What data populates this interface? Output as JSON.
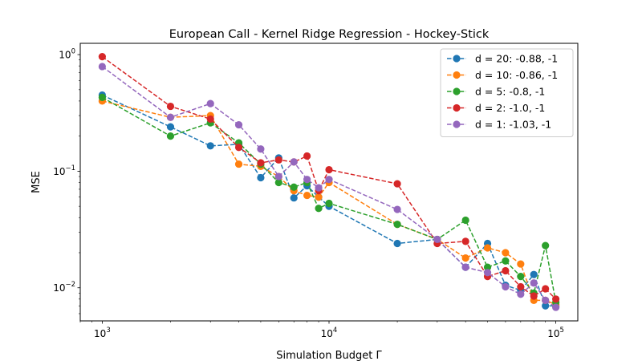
{
  "chart_data": {
    "type": "line",
    "title": "European Call - Kernel Ridge Regression - Hockey-Stick",
    "xlabel": "Simulation Budget Γ",
    "ylabel": "MSE",
    "xscale": "log",
    "yscale": "log",
    "xlim": [
      800,
      125000
    ],
    "ylim": [
      0.0052,
      1.25
    ],
    "x_ticks": [
      {
        "value": 1000,
        "base": "10",
        "exp": "3"
      },
      {
        "value": 10000,
        "base": "10",
        "exp": "4"
      },
      {
        "value": 100000,
        "base": "10",
        "exp": "5"
      }
    ],
    "y_ticks": [
      {
        "value": 0.01,
        "base": "10",
        "exp": "−2"
      },
      {
        "value": 0.1,
        "base": "10",
        "exp": "−1"
      },
      {
        "value": 1,
        "base": "10",
        "exp": "0"
      }
    ],
    "grid": false,
    "legend_position": "top-right",
    "x": [
      1000,
      2000,
      3000,
      4000,
      5000,
      6000,
      7000,
      8000,
      9000,
      10000,
      20000,
      30000,
      40000,
      50000,
      60000,
      70000,
      80000,
      90000,
      100000
    ],
    "series": [
      {
        "name": "d = 20: -0.88, -1",
        "color": "#1f77b4",
        "values": [
          0.45,
          0.24,
          0.165,
          0.17,
          0.088,
          0.13,
          0.059,
          0.075,
          0.06,
          0.05,
          0.024,
          0.026,
          0.015,
          0.024,
          0.0105,
          0.0095,
          0.013,
          0.007,
          0.007
        ]
      },
      {
        "name": "d = 10: -0.86, -1",
        "color": "#ff7f0e",
        "values": [
          0.4,
          0.29,
          0.3,
          0.115,
          0.11,
          0.09,
          0.068,
          0.062,
          0.06,
          0.08,
          0.035,
          0.026,
          0.018,
          0.022,
          0.02,
          0.016,
          0.0078,
          0.0078,
          0.0072
        ]
      },
      {
        "name": "d = 5: -0.8, -1",
        "color": "#2ca02c",
        "values": [
          0.43,
          0.2,
          0.26,
          0.175,
          0.115,
          0.08,
          0.073,
          0.08,
          0.048,
          0.053,
          0.035,
          0.026,
          0.038,
          0.015,
          0.017,
          0.0125,
          0.009,
          0.023,
          0.0075
        ]
      },
      {
        "name": "d = 2: -1.0, -1",
        "color": "#d62728",
        "values": [
          0.96,
          0.36,
          0.28,
          0.16,
          0.118,
          0.125,
          0.12,
          0.135,
          0.068,
          0.103,
          0.078,
          0.024,
          0.025,
          0.0125,
          0.014,
          0.0102,
          0.0085,
          0.0098,
          0.008
        ]
      },
      {
        "name": "d = 1: -1.03, -1",
        "color": "#9467bd",
        "values": [
          0.79,
          0.29,
          0.38,
          0.25,
          0.155,
          0.09,
          0.12,
          0.085,
          0.072,
          0.085,
          0.047,
          0.026,
          0.015,
          0.0135,
          0.0102,
          0.0088,
          0.011,
          0.0078,
          0.0068
        ]
      }
    ]
  }
}
